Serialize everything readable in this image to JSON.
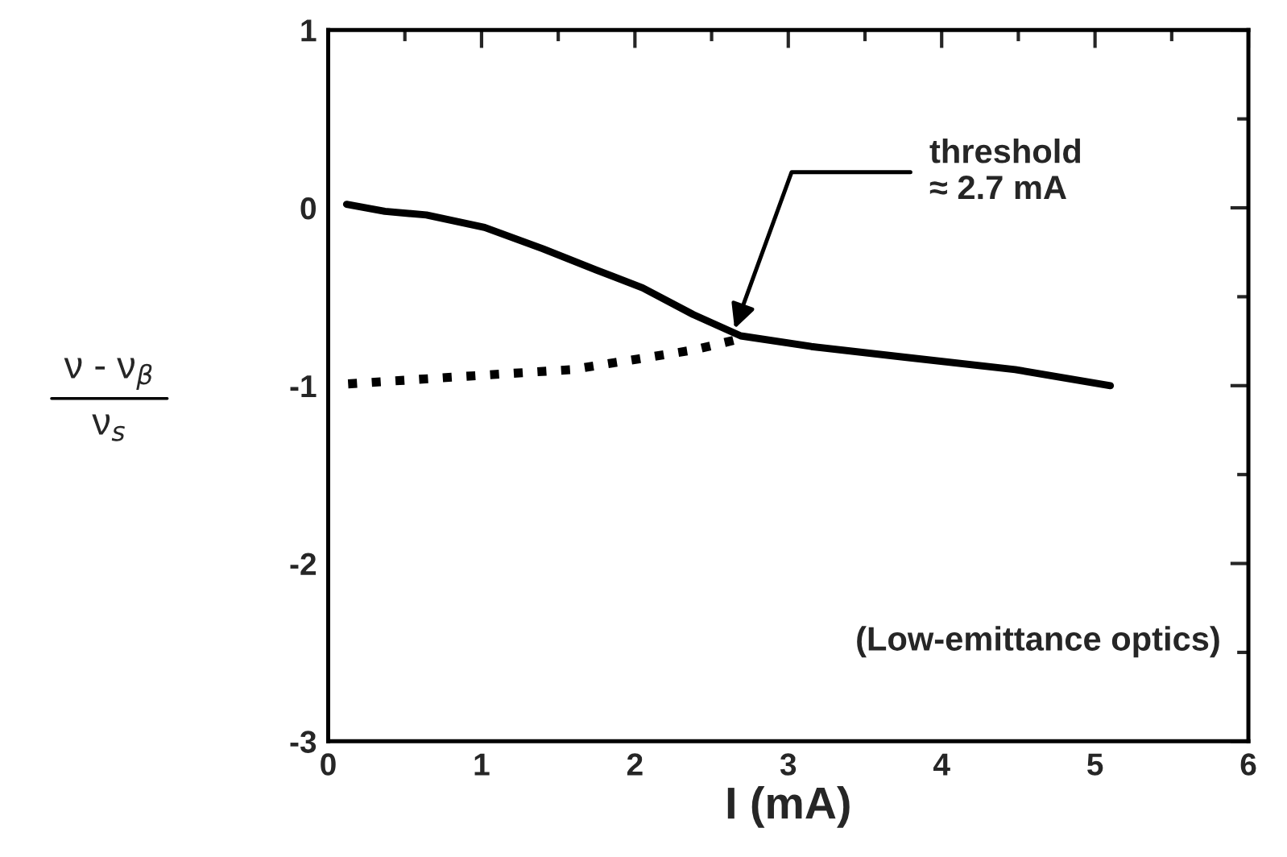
{
  "chart_data": {
    "type": "line",
    "xlabel": "I (mA)",
    "ylabel": "ν - ν$_{β}$\nν$_{s}$",
    "xlim": [
      0,
      6
    ],
    "ylim": [
      -3,
      1
    ],
    "xticks": [
      0,
      1,
      2,
      3,
      4,
      5,
      6
    ],
    "yticks": [
      -3,
      -2,
      -1,
      0,
      1
    ],
    "grid": false,
    "legend": false,
    "marker": "none",
    "series": [
      {
        "color": "#000000",
        "line_style": "solid",
        "x": [
          0.12,
          0.37,
          0.64,
          1.02,
          1.4,
          1.75,
          2.05,
          2.38,
          2.69,
          3.15,
          3.76,
          4.48,
          5.1
        ],
        "values": [
          0.02,
          -0.02,
          -0.04,
          -0.11,
          -0.23,
          -0.35,
          -0.45,
          -0.6,
          -0.72,
          -0.78,
          -0.84,
          -0.91,
          -1.0
        ]
      },
      {
        "color": "#000000",
        "line_style": "dotted",
        "x": [
          0.13,
          0.85,
          1.58,
          2.02,
          2.38,
          2.67
        ],
        "values": [
          -0.99,
          -0.95,
          -0.91,
          -0.85,
          -0.8,
          -0.74
        ]
      }
    ],
    "annotations": [
      {
        "text": "threshold\n≈ 2.7 mA",
        "x": 2.65,
        "y": -0.68
      },
      "(Low-emittance optics)"
    ]
  }
}
